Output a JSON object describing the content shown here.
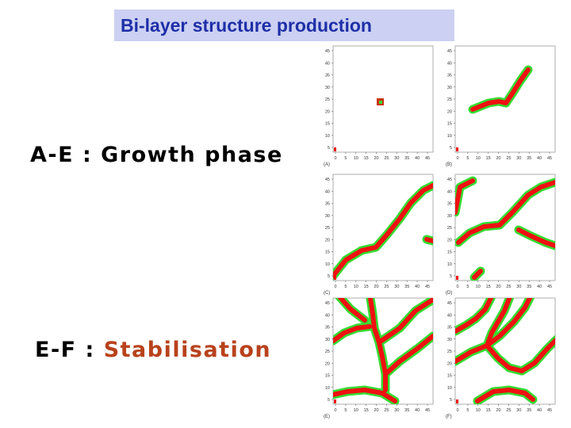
{
  "title": "Bi-layer structure production",
  "labels": {
    "growth": "A-E : Growth phase",
    "stab_prefix": "E-F : ",
    "stab_word": "Stabilisation"
  },
  "colors": {
    "title_bg": "#ccd0f2",
    "title_text": "#1e2fa8",
    "highlight": "#b8421c",
    "layer_red": "#ee1111",
    "layer_green": "#33dd33"
  },
  "panels": [
    {
      "id": "A",
      "caption": "(A)",
      "x_ticks": [
        "0",
        "5",
        "10",
        "15",
        "20",
        "25",
        "30",
        "35",
        "40",
        "45"
      ],
      "y_ticks": [
        "45",
        "40",
        "35",
        "30",
        "25",
        "20",
        "15",
        "10",
        "5"
      ]
    },
    {
      "id": "B",
      "caption": "(B)",
      "x_ticks": [
        "0",
        "5",
        "10",
        "15",
        "20",
        "25",
        "30",
        "35",
        "40",
        "45"
      ],
      "y_ticks": [
        "45",
        "40",
        "35",
        "30",
        "25",
        "20",
        "15",
        "10",
        "5"
      ]
    },
    {
      "id": "C",
      "caption": "(C)",
      "x_ticks": [
        "0",
        "5",
        "10",
        "15",
        "20",
        "25",
        "30",
        "35",
        "40",
        "45"
      ],
      "y_ticks": [
        "45",
        "40",
        "35",
        "30",
        "25",
        "20",
        "15",
        "10",
        "5"
      ]
    },
    {
      "id": "D",
      "caption": "(D)",
      "x_ticks": [
        "0",
        "5",
        "10",
        "15",
        "20",
        "25",
        "30",
        "35",
        "40",
        "45"
      ],
      "y_ticks": [
        "45",
        "40",
        "35",
        "30",
        "25",
        "20",
        "15",
        "10",
        "5"
      ]
    },
    {
      "id": "E",
      "caption": "(E)",
      "x_ticks": [
        "0",
        "5",
        "10",
        "15",
        "20",
        "25",
        "30",
        "35",
        "40",
        "45"
      ],
      "y_ticks": [
        "45",
        "40",
        "35",
        "30",
        "25",
        "20",
        "15",
        "10",
        "5"
      ]
    },
    {
      "id": "F",
      "caption": "(F)",
      "x_ticks": [
        "0",
        "5",
        "10",
        "15",
        "20",
        "25",
        "30",
        "35",
        "40",
        "45"
      ],
      "y_ticks": [
        "45",
        "40",
        "35",
        "30",
        "25",
        "20",
        "15",
        "10",
        "5"
      ]
    }
  ]
}
